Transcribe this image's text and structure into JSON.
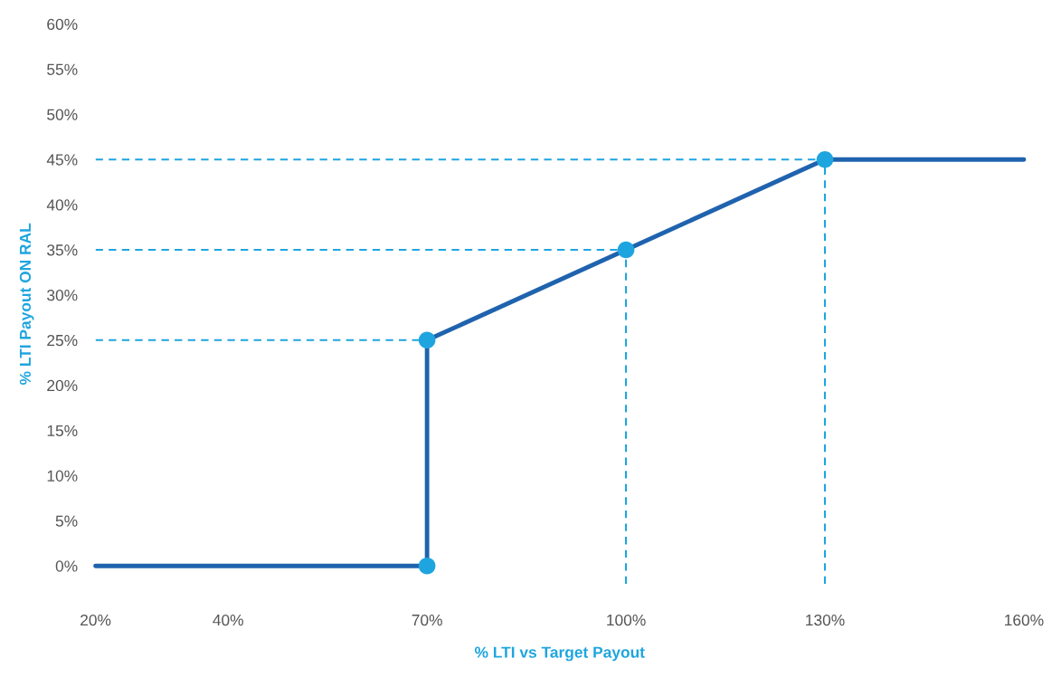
{
  "chart_data": {
    "type": "line",
    "xlabel": "% LTI vs Target Payout",
    "ylabel": "% LTI Payout ON RAL",
    "series": [
      {
        "color": "#1f63ae",
        "x": [
          20,
          70,
          70,
          100,
          130,
          160
        ],
        "values": [
          0,
          0,
          25,
          35,
          45,
          45
        ],
        "marker": "none"
      },
      {
        "type": "scatter",
        "color": "#1ea5df",
        "x": [
          70,
          70,
          100,
          130
        ],
        "values": [
          0,
          25,
          35,
          45
        ],
        "marker": "circle"
      }
    ],
    "ref_lines": [
      {
        "axis": "y",
        "value": 25,
        "color": "#1ea5df",
        "line_style": "dashed"
      },
      {
        "axis": "y",
        "value": 35,
        "color": "#1ea5df",
        "line_style": "dashed"
      },
      {
        "axis": "y",
        "value": 45,
        "color": "#1ea5df",
        "line_style": "dashed"
      },
      {
        "axis": "x",
        "value": 100,
        "color": "#1ea5df",
        "line_style": "dashed"
      },
      {
        "axis": "x",
        "value": 130,
        "color": "#1ea5df",
        "line_style": "dashed"
      }
    ],
    "xlim": [
      20,
      160
    ],
    "ylim": [
      -2,
      60
    ],
    "xticks": [
      {
        "value": 20,
        "label": "20%"
      },
      {
        "value": 40,
        "label": "40%"
      },
      {
        "value": 70,
        "label": "70%"
      },
      {
        "value": 100,
        "label": "100%"
      },
      {
        "value": 130,
        "label": "130%"
      },
      {
        "value": 160,
        "label": "160%"
      }
    ],
    "yticks": [
      {
        "value": 0,
        "label": "0%"
      },
      {
        "value": 5,
        "label": "5%"
      },
      {
        "value": 10,
        "label": "10%"
      },
      {
        "value": 15,
        "label": "15%"
      },
      {
        "value": 20,
        "label": "20%"
      },
      {
        "value": 25,
        "label": "25%"
      },
      {
        "value": 30,
        "label": "30%"
      },
      {
        "value": 35,
        "label": "35%"
      },
      {
        "value": 40,
        "label": "40%"
      },
      {
        "value": 45,
        "label": "45%"
      },
      {
        "value": 50,
        "label": "50%"
      },
      {
        "value": 55,
        "label": "55%"
      },
      {
        "value": 60,
        "label": "60%"
      }
    ],
    "grid": false,
    "legend": false
  }
}
